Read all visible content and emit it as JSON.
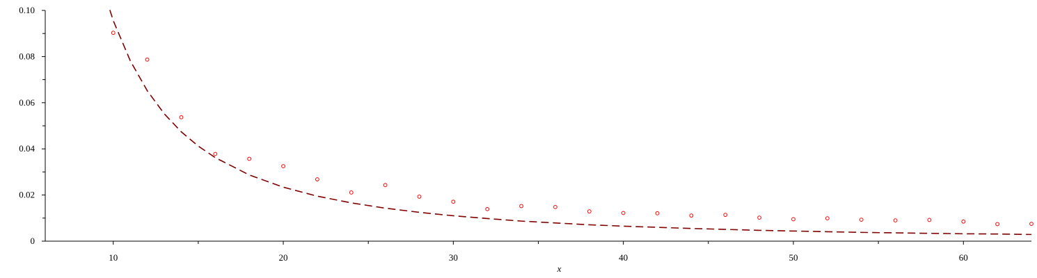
{
  "chart_data": {
    "type": "scatter",
    "title": "",
    "xlabel": "x",
    "ylabel": "",
    "xlim": [
      6,
      64
    ],
    "ylim": [
      0,
      0.1
    ],
    "x_ticks": [
      10,
      20,
      30,
      40,
      50,
      60
    ],
    "x_tick_labels": [
      "10",
      "20",
      "30",
      "40",
      "50",
      "60"
    ],
    "y_ticks": [
      0,
      0.02,
      0.04,
      0.06,
      0.08,
      0.1
    ],
    "y_tick_labels": [
      "0",
      "0.02",
      "0.04",
      "0.06",
      "0.08",
      "0.10"
    ],
    "grid": false,
    "series": [
      {
        "kind": "points",
        "color": "#ff0000",
        "x": [
          10,
          12,
          14,
          16,
          18,
          20,
          22,
          24,
          26,
          28,
          30,
          32,
          34,
          36,
          38,
          40,
          42,
          44,
          46,
          48,
          50,
          52,
          54,
          56,
          58,
          60,
          62,
          64
        ],
        "y": [
          0.0903,
          0.0787,
          0.0537,
          0.0378,
          0.0357,
          0.0325,
          0.0268,
          0.0211,
          0.0243,
          0.0193,
          0.0171,
          0.0139,
          0.0152,
          0.0148,
          0.0129,
          0.0122,
          0.0121,
          0.0111,
          0.0114,
          0.0102,
          0.0095,
          0.0099,
          0.0093,
          0.009,
          0.0092,
          0.0085,
          0.0074,
          0.0075
        ]
      },
      {
        "kind": "curve",
        "color": "#800000",
        "dashed": true,
        "x": [
          9.8,
          10,
          11,
          12,
          13,
          14,
          15,
          16,
          18,
          20,
          22,
          24,
          26,
          28,
          30,
          32,
          34,
          36,
          38,
          40,
          42,
          44,
          46,
          48,
          50,
          52,
          54,
          56,
          58,
          60,
          62,
          64
        ],
        "y": [
          0.1002,
          0.0956,
          0.0782,
          0.0652,
          0.0552,
          0.0474,
          0.0412,
          0.0362,
          0.0287,
          0.0234,
          0.0195,
          0.0166,
          0.0143,
          0.0125,
          0.011,
          0.0098,
          0.0087,
          0.0079,
          0.0071,
          0.0065,
          0.006,
          0.0055,
          0.0051,
          0.0047,
          0.0044,
          0.0041,
          0.0038,
          0.0036,
          0.0034,
          0.0032,
          0.0031,
          0.0029
        ]
      }
    ]
  }
}
